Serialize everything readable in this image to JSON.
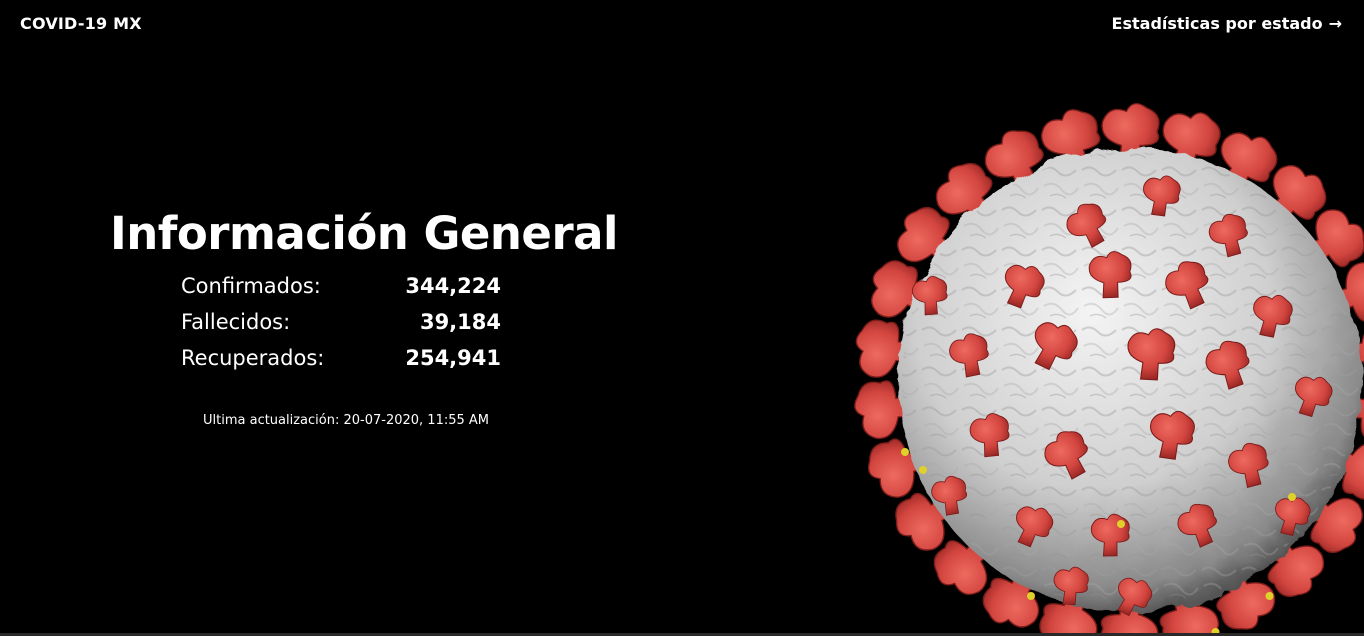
{
  "header": {
    "brand": "COVID-19 MX",
    "nav_link": "Estadísticas por estado",
    "nav_arrow": "→"
  },
  "hero": {
    "title": "Información General",
    "stats": [
      {
        "label": "Confirmados:",
        "value": "344,224"
      },
      {
        "label": "Fallecidos:",
        "value": "39,184"
      },
      {
        "label": "Recuperados:",
        "value": "254,941"
      }
    ],
    "updated": "Ultima actualización: 20-07-2020, 11:55 AM"
  },
  "image": {
    "icon": "coronavirus-illustration",
    "colors": {
      "body": "#d9d9d9",
      "spike": "#d2453f",
      "spike_dark": "#8f2220",
      "dot": "#e0d12a",
      "background": "#000000"
    }
  }
}
